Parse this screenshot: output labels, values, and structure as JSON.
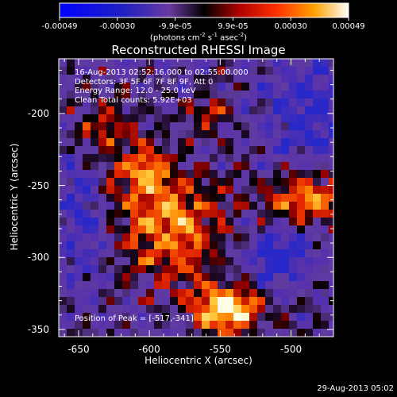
{
  "colorbar": {
    "tick_labels": [
      "-0.00049",
      "-0.00030",
      "-9.9e-05",
      "9.9e-05",
      "0.00030",
      "0.00049"
    ],
    "units_prefix": "(photons cm",
    "units_exp1": "-2",
    "units_mid": " s",
    "units_exp2": "-1",
    "units_mid2": " asec",
    "units_exp3": "-2",
    "units_suffix": ")"
  },
  "plot": {
    "title": "Reconstructed RHESSI Image",
    "annotations": [
      "16-Aug-2013 02:52:16.000 to 02:55:00.000",
      "Detectors: 3F 5F 6F 7F 8F 9F, Att 0",
      "Energy Range: 12.0 - 25.0 keV",
      "Clean    Total counts: 5.92E+03"
    ],
    "peak_label": "Position of Peak = [-517,-341]",
    "x_ticks": [
      "-650",
      "-600",
      "-550",
      "-500"
    ],
    "y_ticks": [
      "-200",
      "-250",
      "-300",
      "-350"
    ],
    "x_tick_values": [
      -650,
      -600,
      -550,
      -500
    ],
    "y_tick_values": [
      -200,
      -250,
      -300,
      -350
    ],
    "x_range": [
      -664,
      -470
    ],
    "y_range": [
      -355,
      -162
    ],
    "xlabel": "Heliocentric X (arcsec)",
    "ylabel": "Heliocentric Y (arcsec)",
    "colormap": "blue-purple-red-orange-yellow-white"
  },
  "timestamp": "29-Aug-2013 05:02"
}
